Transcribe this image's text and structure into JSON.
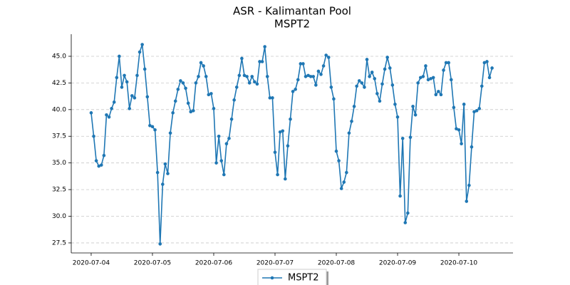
{
  "chart_data": {
    "type": "line",
    "title": "ASR - Kalimantan Pool",
    "subtitle": "MSPT2",
    "x": [
      0,
      1,
      2,
      3,
      4,
      5,
      6,
      7,
      8,
      9,
      10,
      11,
      12,
      13,
      14,
      15,
      16,
      17,
      18,
      19,
      20,
      21,
      22,
      23,
      24,
      25,
      26,
      27,
      28,
      29,
      30,
      31,
      32,
      33,
      34,
      35,
      36,
      37,
      38,
      39,
      40,
      41,
      42,
      43,
      44,
      45,
      46,
      47,
      48,
      49,
      50,
      51,
      52,
      53,
      54,
      55,
      56,
      57,
      58,
      59,
      60,
      61,
      62,
      63,
      64,
      65,
      66,
      67,
      68,
      69,
      70,
      71,
      72,
      73,
      74,
      75,
      76,
      77,
      78,
      79,
      80,
      81,
      82,
      83,
      84,
      85,
      86,
      87,
      88,
      89,
      90,
      91,
      92,
      93,
      94,
      95,
      96,
      97,
      98,
      99,
      100,
      101,
      102,
      103,
      104,
      105,
      106,
      107,
      108,
      109,
      110,
      111,
      112,
      113,
      114,
      115,
      116,
      117,
      118,
      119,
      120,
      121,
      122,
      123,
      124,
      125,
      126,
      127,
      128,
      129,
      130,
      131,
      132,
      133,
      134,
      135,
      136,
      137,
      138,
      139,
      140,
      141,
      142,
      143,
      144,
      145,
      146,
      147,
      148,
      149,
      150,
      151,
      152,
      153,
      154,
      155,
      156,
      157
    ],
    "series": [
      {
        "name": "MSPT2",
        "color": "#1f77b4",
        "values": [
          39.7,
          37.5,
          35.2,
          34.7,
          34.8,
          35.7,
          39.5,
          39.3,
          40.1,
          40.7,
          43.0,
          45.0,
          42.1,
          43.2,
          42.6,
          40.1,
          41.3,
          41.1,
          43.2,
          45.4,
          46.1,
          43.8,
          41.2,
          38.5,
          38.4,
          38.1,
          34.1,
          27.4,
          33.0,
          34.9,
          34.0,
          37.8,
          39.7,
          40.8,
          41.9,
          42.7,
          42.5,
          42.0,
          40.6,
          39.8,
          39.9,
          42.5,
          43.1,
          44.4,
          44.1,
          43.1,
          41.4,
          41.5,
          40.1,
          35.0,
          37.5,
          35.2,
          33.9,
          36.8,
          37.3,
          39.1,
          40.9,
          42.1,
          43.2,
          44.8,
          43.2,
          43.1,
          42.5,
          43.1,
          42.6,
          42.4,
          44.5,
          44.5,
          45.9,
          43.1,
          41.1,
          41.1,
          36.0,
          33.9,
          37.9,
          38.0,
          33.5,
          36.6,
          39.1,
          41.7,
          41.9,
          42.8,
          44.3,
          44.3,
          43.1,
          43.2,
          43.1,
          43.1,
          42.3,
          43.6,
          43.3,
          44.1,
          45.1,
          44.9,
          42.1,
          41.0,
          36.1,
          35.2,
          32.6,
          33.2,
          34.1,
          37.8,
          38.9,
          40.3,
          42.2,
          42.7,
          42.5,
          42.1,
          44.7,
          43.1,
          43.5,
          42.9,
          41.5,
          40.8,
          42.4,
          43.8,
          44.9,
          43.9,
          42.3,
          40.5,
          39.3,
          31.9,
          37.3,
          29.4,
          30.3,
          37.4,
          40.3,
          39.5,
          42.5,
          43.0,
          43.1,
          44.1,
          42.8,
          42.9,
          43.0,
          41.4,
          41.7,
          41.4,
          43.7,
          44.4,
          44.4,
          42.8,
          40.2,
          38.2,
          38.1,
          36.8,
          40.5,
          31.4,
          32.9,
          36.5,
          39.8,
          39.9,
          40.1,
          42.2,
          44.4,
          44.5,
          43.0,
          43.9
        ]
      }
    ],
    "xlim": [
      -7.8,
      165.2
    ],
    "xticks": [
      {
        "value": 0,
        "label": "2020-07-04"
      },
      {
        "value": 24,
        "label": "2020-07-05"
      },
      {
        "value": 48,
        "label": "2020-07-06"
      },
      {
        "value": 72,
        "label": "2020-07-07"
      },
      {
        "value": 96,
        "label": "2020-07-08"
      },
      {
        "value": 120,
        "label": "2020-07-09"
      },
      {
        "value": 144,
        "label": "2020-07-10"
      }
    ],
    "ylim": [
      26.56,
      47.07
    ],
    "yticks": [
      27.5,
      {
        "value": 30,
        "label": "30.0"
      },
      32.5,
      {
        "value": 35,
        "label": "35.0"
      },
      37.5,
      {
        "value": 40,
        "label": "40.0"
      },
      42.5,
      {
        "value": 45,
        "label": "45.0"
      }
    ],
    "grid": true,
    "legend": "bottom"
  }
}
